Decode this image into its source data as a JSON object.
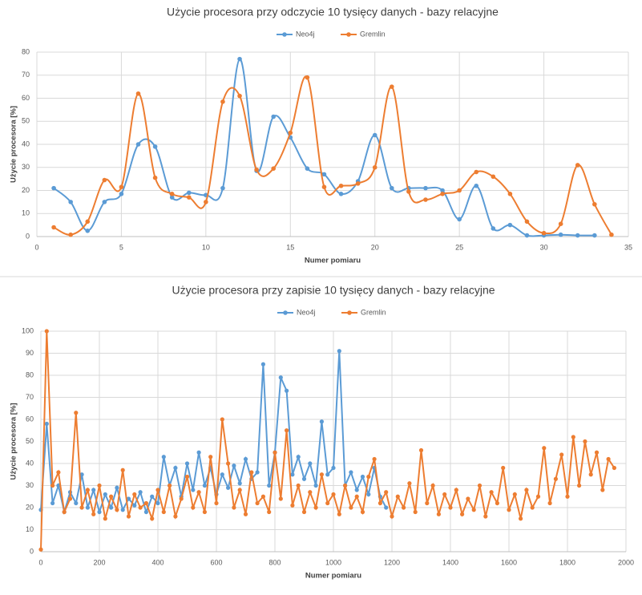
{
  "chart_data": [
    {
      "type": "line",
      "smooth": true,
      "title": "Użycie procesora przy odczycie 10 tysięcy danych - bazy relacyjne",
      "xlabel": "Numer pomiaru",
      "ylabel": "Użycie procesora [%]",
      "grid": true,
      "legend": "top",
      "xlim": [
        0,
        35
      ],
      "xticks": [
        0,
        5,
        10,
        15,
        20,
        25,
        30,
        35
      ],
      "ylim": [
        0,
        80
      ],
      "yticks": [
        0,
        10,
        20,
        30,
        40,
        50,
        60,
        70,
        80
      ],
      "series": [
        {
          "name": "Neo4j",
          "color": "#5b9bd5",
          "x": [
            1,
            2,
            3,
            4,
            5,
            6,
            7,
            8,
            9,
            10,
            11,
            12,
            13,
            14,
            15,
            16,
            17,
            18,
            19,
            20,
            21,
            22,
            23,
            24,
            25,
            26,
            27,
            28,
            29,
            30,
            31,
            32,
            33
          ],
          "values": [
            21,
            15,
            2.5,
            15,
            18.5,
            40,
            39,
            17,
            19,
            18,
            21,
            77,
            28.5,
            52,
            43,
            29.5,
            27,
            18.5,
            24,
            44,
            21,
            21,
            21,
            20,
            7.5,
            22,
            3.5,
            5,
            0.5,
            0.5,
            0.8,
            0.5,
            0.5
          ]
        },
        {
          "name": "Gremlin",
          "color": "#ed7d31",
          "x": [
            1,
            2,
            3,
            4,
            5,
            6,
            7,
            8,
            9,
            10,
            11,
            12,
            13,
            14,
            15,
            16,
            17,
            18,
            19,
            20,
            21,
            22,
            23,
            24,
            25,
            26,
            27,
            28,
            29,
            30,
            31,
            32,
            33,
            34
          ],
          "values": [
            4,
            0.8,
            6.5,
            24.5,
            21.5,
            62,
            25.5,
            18.5,
            17,
            15,
            58.5,
            61,
            29,
            29.5,
            45,
            69,
            21.5,
            22,
            23,
            30,
            65,
            19.5,
            16,
            18.5,
            20,
            28,
            26,
            18.5,
            6.5,
            1.5,
            5.5,
            31,
            14,
            0.8
          ]
        }
      ]
    },
    {
      "type": "line",
      "smooth": false,
      "title": "Użycie procesora przy zapisie 10 tysięcy danych - bazy relacyjne",
      "xlabel": "Numer pomiaru",
      "ylabel": "Użycie procesora [%]",
      "grid": true,
      "legend": "top",
      "xlim": [
        0,
        2000
      ],
      "xticks": [
        0,
        200,
        400,
        600,
        800,
        1000,
        1200,
        1400,
        1600,
        1800,
        2000
      ],
      "ylim": [
        0,
        100
      ],
      "yticks": [
        0,
        10,
        20,
        30,
        40,
        50,
        60,
        70,
        80,
        90,
        100
      ],
      "series": [
        {
          "name": "Neo4j",
          "color": "#5b9bd5",
          "x": [
            0,
            20,
            40,
            60,
            80,
            100,
            120,
            140,
            160,
            180,
            200,
            220,
            240,
            260,
            280,
            300,
            320,
            340,
            360,
            380,
            400,
            420,
            440,
            460,
            480,
            500,
            520,
            540,
            560,
            580,
            600,
            620,
            640,
            660,
            680,
            700,
            720,
            740,
            760,
            780,
            800,
            820,
            840,
            860,
            880,
            900,
            920,
            940,
            960,
            980,
            1000,
            1020,
            1040,
            1060,
            1080,
            1100,
            1120,
            1140,
            1160,
            1180
          ],
          "values": [
            19,
            58,
            22,
            30,
            18,
            27,
            22,
            35,
            20,
            28,
            18,
            26,
            20,
            29,
            19,
            24,
            21,
            27,
            18,
            25,
            22,
            43,
            30,
            38,
            25,
            40,
            28,
            45,
            30,
            38,
            26,
            35,
            29,
            39,
            31,
            42,
            33,
            36,
            85,
            30,
            45,
            79,
            73,
            35,
            43,
            33,
            40,
            30,
            59,
            35,
            38,
            91,
            30,
            36,
            28,
            34,
            26,
            38,
            25,
            20
          ]
        },
        {
          "name": "Gremlin",
          "color": "#ed7d31",
          "x": [
            0,
            20,
            40,
            60,
            80,
            100,
            120,
            140,
            160,
            180,
            200,
            220,
            240,
            260,
            280,
            300,
            320,
            340,
            360,
            380,
            400,
            420,
            440,
            460,
            480,
            500,
            520,
            540,
            560,
            580,
            600,
            620,
            640,
            660,
            680,
            700,
            720,
            740,
            760,
            780,
            800,
            820,
            840,
            860,
            880,
            900,
            920,
            940,
            960,
            980,
            1000,
            1020,
            1040,
            1060,
            1080,
            1100,
            1120,
            1140,
            1160,
            1180,
            1200,
            1220,
            1240,
            1260,
            1280,
            1300,
            1320,
            1340,
            1360,
            1380,
            1400,
            1420,
            1440,
            1460,
            1480,
            1500,
            1520,
            1540,
            1560,
            1580,
            1600,
            1620,
            1640,
            1660,
            1680,
            1700,
            1720,
            1740,
            1760,
            1780,
            1800,
            1820,
            1840,
            1860,
            1880,
            1900,
            1920,
            1940,
            1960
          ],
          "values": [
            1,
            100,
            30,
            36,
            18,
            24,
            63,
            20,
            28,
            17,
            30,
            15,
            25,
            19,
            37,
            16,
            26,
            20,
            22,
            15,
            28,
            18,
            30,
            16,
            24,
            34,
            20,
            27,
            18,
            43,
            22,
            60,
            40,
            20,
            28,
            17,
            36,
            22,
            25,
            18,
            45,
            24,
            55,
            21,
            30,
            18,
            27,
            20,
            35,
            22,
            26,
            17,
            30,
            20,
            25,
            18,
            34,
            42,
            22,
            27,
            16,
            25,
            20,
            31,
            18,
            46,
            22,
            30,
            17,
            26,
            20,
            28,
            17,
            24,
            19,
            30,
            16,
            27,
            22,
            38,
            19,
            26,
            15,
            28,
            20,
            25,
            47,
            22,
            33,
            44,
            25,
            52,
            30,
            50,
            35,
            45,
            28,
            42,
            38
          ]
        }
      ]
    }
  ]
}
